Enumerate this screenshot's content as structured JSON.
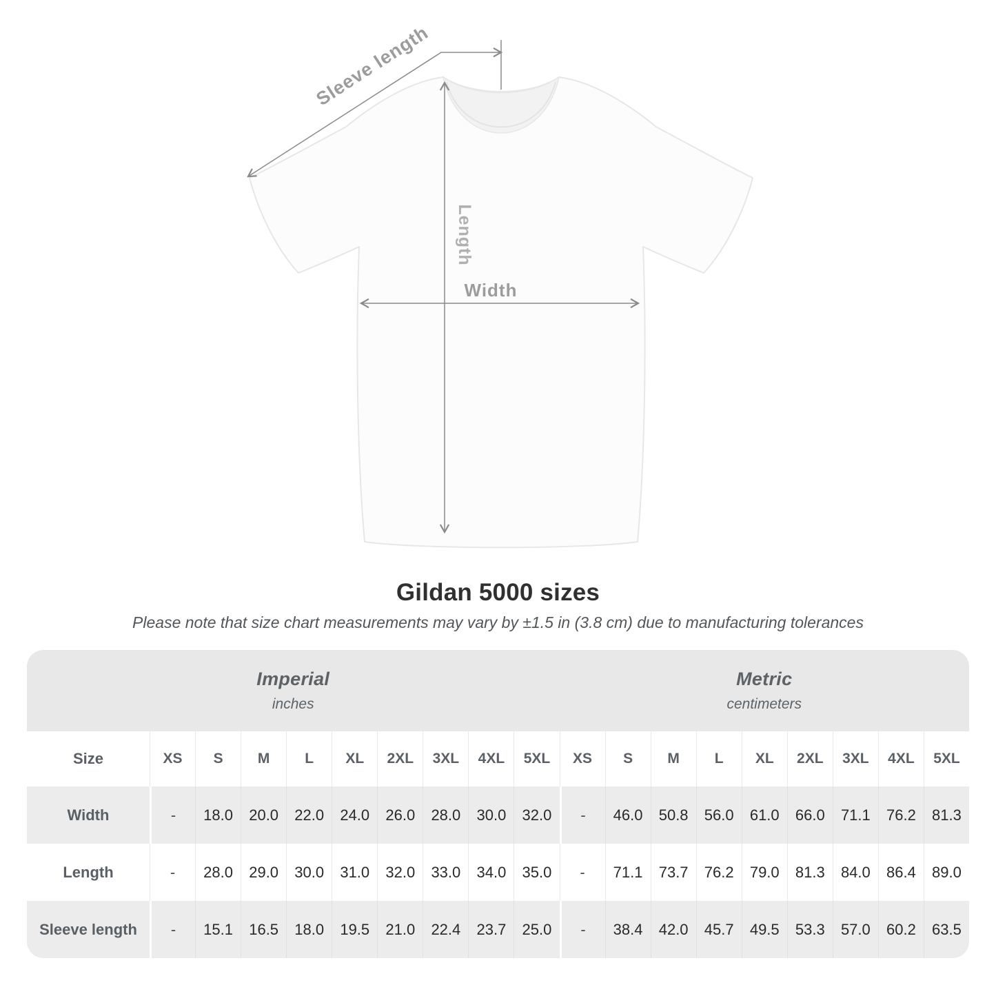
{
  "diagram": {
    "sleeve_length_label": "Sleeve length",
    "length_label": "Length",
    "width_label": "Width"
  },
  "header": {
    "title": "Gildan 5000 sizes",
    "subtitle": "Please note that size chart measurements may vary by ±1.5 in (3.8 cm) due to manufacturing tolerances"
  },
  "table": {
    "size_label": "Size",
    "groups": [
      {
        "name": "Imperial",
        "unit": "inches"
      },
      {
        "name": "Metric",
        "unit": "centimeters"
      }
    ],
    "sizes": [
      "XS",
      "S",
      "M",
      "L",
      "XL",
      "2XL",
      "3XL",
      "4XL",
      "5XL"
    ],
    "rows": [
      {
        "label": "Width",
        "imperial": [
          "-",
          "18.0",
          "20.0",
          "22.0",
          "24.0",
          "26.0",
          "28.0",
          "30.0",
          "32.0"
        ],
        "metric": [
          "-",
          "46.0",
          "50.8",
          "56.0",
          "61.0",
          "66.0",
          "71.1",
          "76.2",
          "81.3"
        ]
      },
      {
        "label": "Length",
        "imperial": [
          "-",
          "28.0",
          "29.0",
          "30.0",
          "31.0",
          "32.0",
          "33.0",
          "34.0",
          "35.0"
        ],
        "metric": [
          "-",
          "71.1",
          "73.7",
          "76.2",
          "79.0",
          "81.3",
          "84.0",
          "86.4",
          "89.0"
        ]
      },
      {
        "label": "Sleeve length",
        "imperial": [
          "-",
          "15.1",
          "16.5",
          "18.0",
          "19.5",
          "21.0",
          "22.4",
          "23.7",
          "25.0"
        ],
        "metric": [
          "-",
          "38.4",
          "42.0",
          "45.7",
          "49.5",
          "53.3",
          "57.0",
          "60.2",
          "63.5"
        ]
      }
    ]
  },
  "colors": {
    "measure_line": "#8a8a8a",
    "measure_label": "#9c9c9c",
    "band_bg": "#e8e8e8",
    "stripe_bg": "#ececec",
    "title_color": "#303030"
  },
  "chart_data": {
    "type": "table",
    "title": "Gildan 5000 sizes",
    "note": "Please note that size chart measurements may vary by ±1.5 in (3.8 cm) due to manufacturing tolerances",
    "column_groups": [
      {
        "name": "Imperial",
        "unit": "inches",
        "sizes": [
          "XS",
          "S",
          "M",
          "L",
          "XL",
          "2XL",
          "3XL",
          "4XL",
          "5XL"
        ]
      },
      {
        "name": "Metric",
        "unit": "centimeters",
        "sizes": [
          "XS",
          "S",
          "M",
          "L",
          "XL",
          "2XL",
          "3XL",
          "4XL",
          "5XL"
        ]
      }
    ],
    "rows": [
      {
        "measurement": "Width",
        "imperial_in": [
          null,
          18.0,
          20.0,
          22.0,
          24.0,
          26.0,
          28.0,
          30.0,
          32.0
        ],
        "metric_cm": [
          null,
          46.0,
          50.8,
          56.0,
          61.0,
          66.0,
          71.1,
          76.2,
          81.3
        ]
      },
      {
        "measurement": "Length",
        "imperial_in": [
          null,
          28.0,
          29.0,
          30.0,
          31.0,
          32.0,
          33.0,
          34.0,
          35.0
        ],
        "metric_cm": [
          null,
          71.1,
          73.7,
          76.2,
          79.0,
          81.3,
          84.0,
          86.4,
          89.0
        ]
      },
      {
        "measurement": "Sleeve length",
        "imperial_in": [
          null,
          15.1,
          16.5,
          18.0,
          19.5,
          21.0,
          22.4,
          23.7,
          25.0
        ],
        "metric_cm": [
          null,
          38.4,
          42.0,
          45.7,
          49.5,
          53.3,
          57.0,
          60.2,
          63.5
        ]
      }
    ]
  }
}
